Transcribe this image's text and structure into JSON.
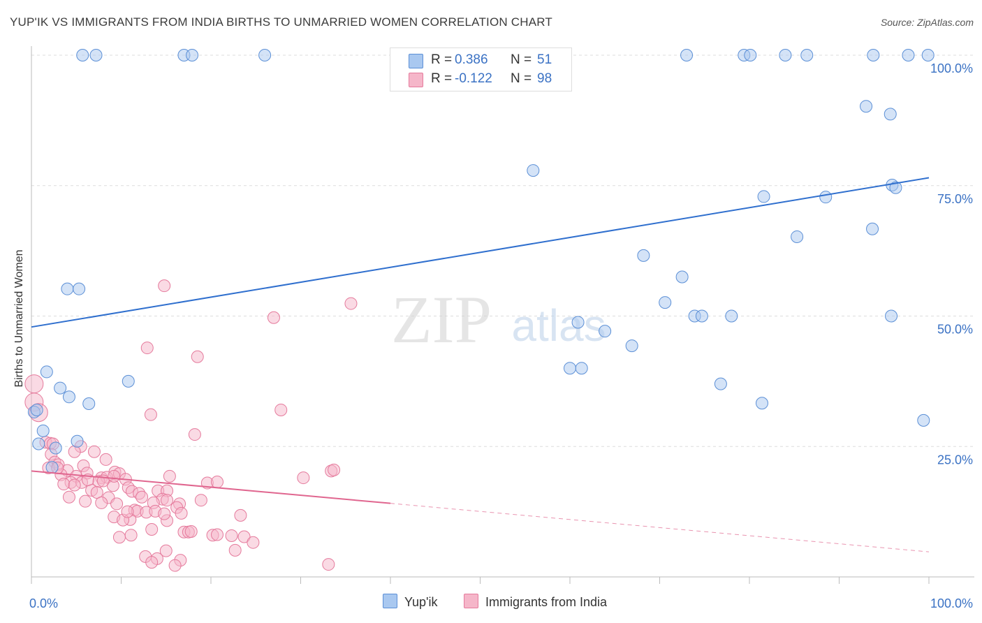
{
  "title": "YUP'IK VS IMMIGRANTS FROM INDIA BIRTHS TO UNMARRIED WOMEN CORRELATION CHART",
  "source": "Source: ZipAtlas.com",
  "watermark": {
    "zip": "ZIP",
    "atlas": "atlas"
  },
  "legend": {
    "rows": [
      {
        "r_label": "R =",
        "r_value": "0.386",
        "n_label": "N =",
        "n_value": "51"
      },
      {
        "r_label": "R =",
        "r_value": "-0.122",
        "n_label": "N =",
        "n_value": "98"
      }
    ]
  },
  "bottom_legend": {
    "series1": "Yup'ik",
    "series2": "Immigrants from India"
  },
  "colors": {
    "blue_fill": "#a9c8f0",
    "blue_edge": "#5b8fd6",
    "blue_line": "#2f6fce",
    "pink_fill": "#f5b6c9",
    "pink_edge": "#e57a9c",
    "pink_line": "#e0668f",
    "axis_text": "#3b72c4",
    "grid": "#dddddd"
  },
  "chart_data": {
    "type": "scatter",
    "title": "YUP'IK VS IMMIGRANTS FROM INDIA BIRTHS TO UNMARRIED WOMEN CORRELATION CHART",
    "xlabel": "",
    "ylabel": "Births to Unmarried Women",
    "xlim": [
      0,
      100
    ],
    "ylim": [
      0,
      100
    ],
    "x_tick_labels": [
      "0.0%",
      "100.0%"
    ],
    "y_tick_labels": [
      "25.0%",
      "50.0%",
      "75.0%",
      "100.0%"
    ],
    "y_ticks": [
      25,
      50,
      75,
      100
    ],
    "series": [
      {
        "name": "Yup'ik",
        "R": 0.386,
        "N": 51,
        "trend": {
          "x": [
            0,
            100
          ],
          "y": [
            47.9,
            76.5
          ],
          "solid_to": 100
        },
        "points": [
          [
            5.7,
            100
          ],
          [
            7.2,
            100
          ],
          [
            17.0,
            100
          ],
          [
            17.9,
            100
          ],
          [
            26.0,
            100
          ],
          [
            73.0,
            100
          ],
          [
            79.4,
            100
          ],
          [
            80.1,
            100
          ],
          [
            84.0,
            100
          ],
          [
            86.4,
            100
          ],
          [
            93.8,
            100
          ],
          [
            97.7,
            100
          ],
          [
            99.9,
            100
          ],
          [
            93.0,
            90.2
          ],
          [
            95.7,
            88.7
          ],
          [
            55.9,
            77.9
          ],
          [
            95.9,
            75.1
          ],
          [
            96.3,
            74.6
          ],
          [
            81.6,
            72.9
          ],
          [
            88.5,
            72.8
          ],
          [
            93.7,
            66.7
          ],
          [
            85.3,
            65.2
          ],
          [
            68.2,
            61.6
          ],
          [
            72.5,
            57.5
          ],
          [
            70.6,
            52.6
          ],
          [
            73.9,
            50
          ],
          [
            74.7,
            50
          ],
          [
            78.0,
            50
          ],
          [
            95.8,
            50
          ],
          [
            60.9,
            48.8
          ],
          [
            63.9,
            47.1
          ],
          [
            66.9,
            44.3
          ],
          [
            4.0,
            55.2
          ],
          [
            5.3,
            55.2
          ],
          [
            60.0,
            40
          ],
          [
            61.3,
            40
          ],
          [
            76.8,
            37.0
          ],
          [
            81.4,
            33.3
          ],
          [
            99.4,
            30.0
          ],
          [
            1.7,
            39.3
          ],
          [
            10.8,
            37.5
          ],
          [
            3.2,
            36.2
          ],
          [
            4.2,
            34.5
          ],
          [
            6.4,
            33.2
          ],
          [
            0.3,
            31.6
          ],
          [
            1.3,
            28.0
          ],
          [
            0.8,
            25.5
          ],
          [
            5.1,
            26.0
          ],
          [
            2.7,
            24.7
          ],
          [
            2.3,
            21.0
          ],
          [
            0.6,
            32.0
          ]
        ]
      },
      {
        "name": "Immigrants from India",
        "R": -0.122,
        "N": 98,
        "trend": {
          "x": [
            0,
            100
          ],
          "y": [
            20.3,
            4.8
          ],
          "solid_to": 40
        },
        "points": [
          [
            0.3,
            37.0
          ],
          [
            0.3,
            33.5
          ],
          [
            0.8,
            31.5
          ],
          [
            14.8,
            55.8
          ],
          [
            35.6,
            52.4
          ],
          [
            27.0,
            49.7
          ],
          [
            12.9,
            43.9
          ],
          [
            18.5,
            42.2
          ],
          [
            27.8,
            32.0
          ],
          [
            13.3,
            31.1
          ],
          [
            18.2,
            27.3
          ],
          [
            1.6,
            25.8
          ],
          [
            2.1,
            25.6
          ],
          [
            2.4,
            25.5
          ],
          [
            5.5,
            25.0
          ],
          [
            7.0,
            24.0
          ],
          [
            2.2,
            23.5
          ],
          [
            4.8,
            24.0
          ],
          [
            8.3,
            22.5
          ],
          [
            2.6,
            22.0
          ],
          [
            3.0,
            21.5
          ],
          [
            5.8,
            21.3
          ],
          [
            1.9,
            20.9
          ],
          [
            4.0,
            20.4
          ],
          [
            9.3,
            20.1
          ],
          [
            9.8,
            19.8
          ],
          [
            15.4,
            19.3
          ],
          [
            3.3,
            19.6
          ],
          [
            5.0,
            19.3
          ],
          [
            6.2,
            19.9
          ],
          [
            7.8,
            19.0
          ],
          [
            8.4,
            19.1
          ],
          [
            10.5,
            18.7
          ],
          [
            4.4,
            18.1
          ],
          [
            5.6,
            18.1
          ],
          [
            7.5,
            18.3
          ],
          [
            3.6,
            17.8
          ],
          [
            4.8,
            17.6
          ],
          [
            9.1,
            17.5
          ],
          [
            10.8,
            17.1
          ],
          [
            19.6,
            18.0
          ],
          [
            20.7,
            18.2
          ],
          [
            30.3,
            19.0
          ],
          [
            33.4,
            20.3
          ],
          [
            33.7,
            20.5
          ],
          [
            6.7,
            16.6
          ],
          [
            7.3,
            16.2
          ],
          [
            11.2,
            16.4
          ],
          [
            14.1,
            16.5
          ],
          [
            15.1,
            16.5
          ],
          [
            12.0,
            16.0
          ],
          [
            4.2,
            15.3
          ],
          [
            8.6,
            15.2
          ],
          [
            12.3,
            15.3
          ],
          [
            14.6,
            14.9
          ],
          [
            15.1,
            14.7
          ],
          [
            6.0,
            14.5
          ],
          [
            7.8,
            14.2
          ],
          [
            9.5,
            14.0
          ],
          [
            13.6,
            14.2
          ],
          [
            16.5,
            14.0
          ],
          [
            18.9,
            14.7
          ],
          [
            16.2,
            13.3
          ],
          [
            11.5,
            12.8
          ],
          [
            11.8,
            12.6
          ],
          [
            12.8,
            12.4
          ],
          [
            13.8,
            12.6
          ],
          [
            16.7,
            12.2
          ],
          [
            23.3,
            11.8
          ],
          [
            9.2,
            11.5
          ],
          [
            11.0,
            11.0
          ],
          [
            10.2,
            10.9
          ],
          [
            15.1,
            10.8
          ],
          [
            13.4,
            9.1
          ],
          [
            17.0,
            8.6
          ],
          [
            17.5,
            8.6
          ],
          [
            17.8,
            8.7
          ],
          [
            11.1,
            8.0
          ],
          [
            9.8,
            7.6
          ],
          [
            20.2,
            8.0
          ],
          [
            22.3,
            7.9
          ],
          [
            23.7,
            7.7
          ],
          [
            24.7,
            6.6
          ],
          [
            12.7,
            3.9
          ],
          [
            14.0,
            3.5
          ],
          [
            16.6,
            3.2
          ],
          [
            15.0,
            5.0
          ],
          [
            22.7,
            5.1
          ],
          [
            13.4,
            2.8
          ],
          [
            16.0,
            2.2
          ],
          [
            33.1,
            2.4
          ],
          [
            20.7,
            8.1
          ],
          [
            2.9,
            20.9
          ],
          [
            6.3,
            18.6
          ],
          [
            8.0,
            18.4
          ],
          [
            9.2,
            19.3
          ],
          [
            10.7,
            12.5
          ],
          [
            14.8,
            12.1
          ]
        ]
      }
    ]
  }
}
